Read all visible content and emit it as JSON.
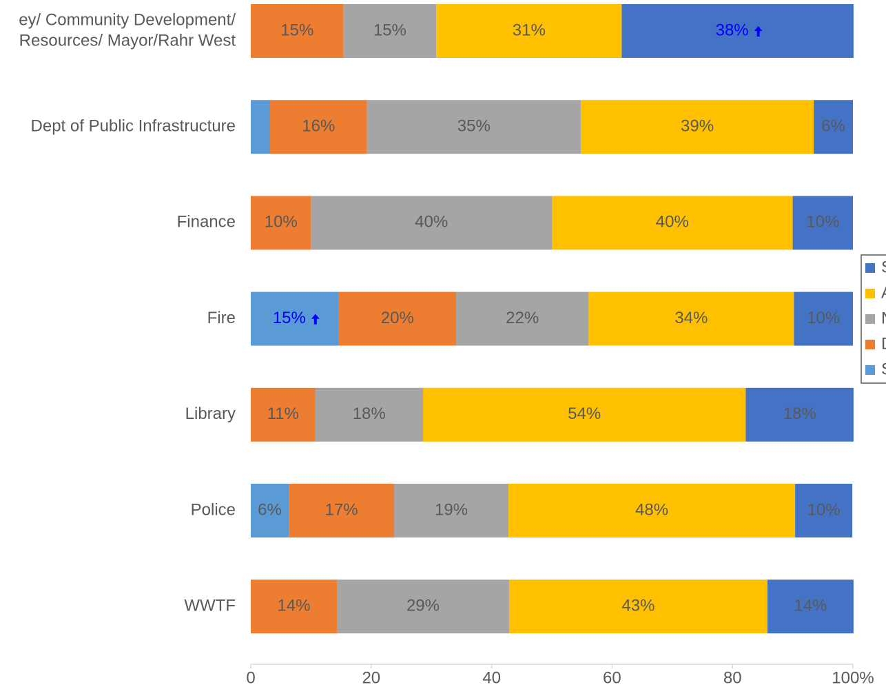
{
  "chart_data": {
    "type": "stacked-bar-horizontal",
    "categories": [
      [
        "ey/ Community Development/",
        "Resources/ Mayor/Rahr West"
      ],
      "Dept of Public Infrastructure",
      "Finance",
      "Fire",
      "Library",
      "Police",
      "WWTF"
    ],
    "series": [
      {
        "name": "Strongly Disagree",
        "color": "#5b9bd5",
        "values": [
          0,
          3.2,
          0,
          14.6,
          0,
          6.3,
          0
        ],
        "value_labels": [
          null,
          null,
          null,
          "15%",
          null,
          "6%",
          null
        ]
      },
      {
        "name": "Disagree",
        "color": "#ed7d31",
        "values": [
          15.4,
          16.1,
          10,
          19.5,
          10.7,
          17.5,
          14.3
        ],
        "value_labels": [
          "15%",
          "16%",
          "10%",
          "20%",
          "11%",
          "17%",
          "14%"
        ]
      },
      {
        "name": "Neutral",
        "color": "#a5a5a5",
        "values": [
          15.4,
          35.5,
          40,
          22,
          17.9,
          19,
          28.6
        ],
        "value_labels": [
          "15%",
          "35%",
          "40%",
          "22%",
          "18%",
          "19%",
          "29%"
        ]
      },
      {
        "name": "Agree",
        "color": "#ffc000",
        "values": [
          30.8,
          38.7,
          40,
          34.1,
          53.6,
          47.6,
          42.9
        ],
        "value_labels": [
          "31%",
          "39%",
          "40%",
          "34%",
          "54%",
          "48%",
          "43%"
        ]
      },
      {
        "name": "Strongly Agree",
        "color": "#4472c4",
        "values": [
          38.5,
          6.5,
          10,
          9.8,
          17.9,
          9.5,
          14.3
        ],
        "value_labels": [
          "38%",
          "6%",
          "10%",
          "10%",
          "18%",
          "10%",
          "14%"
        ]
      }
    ],
    "highlighted_labels": [
      {
        "series": 4,
        "index": 0
      },
      {
        "series": 0,
        "index": 3
      }
    ],
    "highlight_color": "#0000ff",
    "xlim": [
      0,
      100
    ],
    "xticks": [
      0,
      20,
      40,
      60,
      80,
      {
        "value": 100,
        "label": "100%"
      }
    ],
    "legend": "right"
  }
}
